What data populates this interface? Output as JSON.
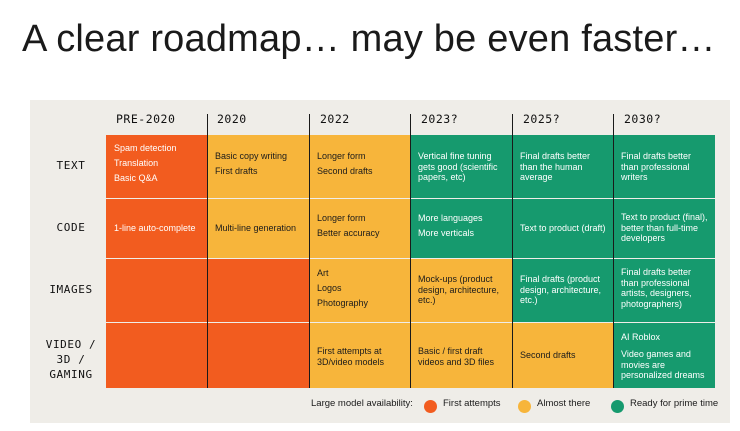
{
  "title": "A clear roadmap… may be even faster…",
  "columns": [
    "PRE-2020",
    "2020",
    "2022",
    "2023?",
    "2025?",
    "2030?"
  ],
  "rows": {
    "text": "TEXT",
    "code": "CODE",
    "images": "IMAGES",
    "video": [
      "VIDEO /",
      "3D /",
      "GAMING"
    ]
  },
  "cells": {
    "text": {
      "pre2020": [
        "Spam detection",
        "Translation",
        "Basic Q&A"
      ],
      "y2020": [
        "Basic copy writing",
        "First drafts"
      ],
      "y2022": [
        "Longer form",
        "Second drafts"
      ],
      "y2023": "Vertical fine tuning gets good (scientific papers, etc)",
      "y2025": "Final drafts better than the human average",
      "y2030": "Final drafts better than professional writers"
    },
    "code": {
      "pre2020": "1-line auto-complete",
      "y2020": "Multi-line generation",
      "y2022": [
        "Longer form",
        "Better accuracy"
      ],
      "y2023": [
        "More languages",
        "More verticals"
      ],
      "y2025": "Text to product (draft)",
      "y2030": "Text to product (final), better than full-time developers"
    },
    "images": {
      "y2022": [
        "Art",
        "Logos",
        "Photography"
      ],
      "y2023": "Mock-ups (product design, architecture, etc.)",
      "y2025": "Final drafts (product design, architecture, etc.)",
      "y2030": "Final drafts better than professional artists, designers, photographers)"
    },
    "video": {
      "y2022": "First attempts at 3D/video models",
      "y2023": "Basic / first draft videos and 3D files",
      "y2025": "Second drafts",
      "y2030": [
        "AI Roblox",
        "Video games and movies are personalized dreams"
      ]
    }
  },
  "legend": {
    "label": "Large model availability:",
    "items": [
      {
        "label": "First attempts",
        "color": "#f25c1f"
      },
      {
        "label": "Almost there",
        "color": "#f7b53b"
      },
      {
        "label": "Ready for prime time",
        "color": "#169a6e"
      }
    ]
  },
  "colors": {
    "orange": "#f25c1f",
    "yellow": "#f7b53b",
    "green": "#169a6e",
    "panel": "#efede8"
  }
}
